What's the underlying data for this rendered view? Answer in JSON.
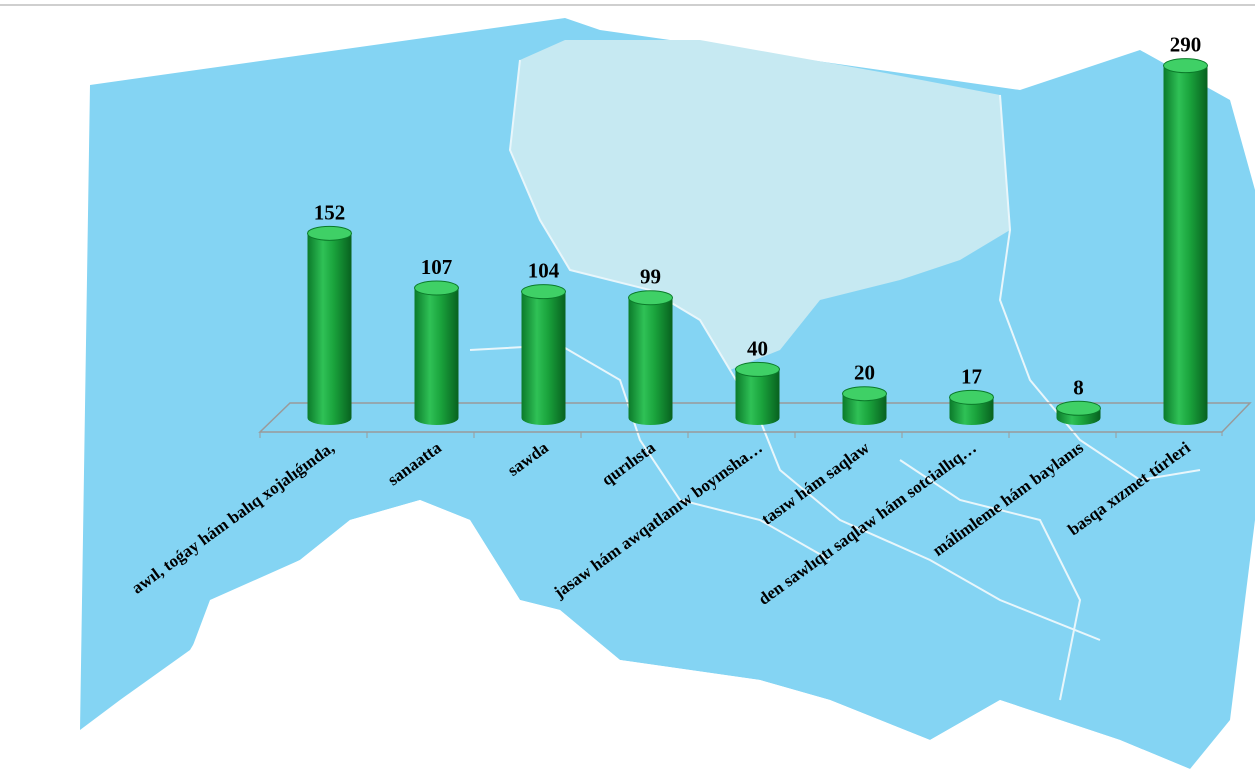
{
  "chart_data": {
    "type": "bar",
    "categories": [
      "awıl, toǵay hám balıq xojalıǵında,",
      "sanaatta",
      "sawda",
      "qurılısta",
      "jasaw hám awqatlanıw boyınsha…",
      "tasıw hám saqlaw",
      "den sawlıqtı saqlaw hám sotciallıq…",
      "málimleme hám baylanıs",
      "basqa xızmet túrleri"
    ],
    "values": [
      152,
      107,
      104,
      99,
      40,
      20,
      17,
      8,
      290
    ],
    "color": "#1aa33c"
  }
}
